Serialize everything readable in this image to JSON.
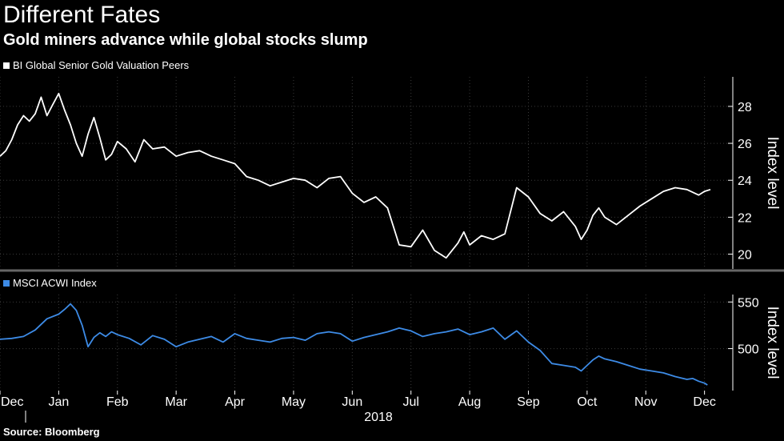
{
  "title": "Different Fates",
  "subtitle": "Gold miners advance while global stocks slump",
  "source": "Source: Bloomberg",
  "colors": {
    "background": "#000000",
    "gold_series": "#ffffff",
    "acwi_series": "#3d8be6",
    "grid": "#3a3a3a",
    "divider": "#666666"
  },
  "chart_data": [
    {
      "type": "line",
      "title": "BI Global Senior Gold Valuation Peers",
      "ylabel": "Index level",
      "ylim": [
        19.2,
        29.6
      ],
      "yticks": [
        20,
        22,
        24,
        26,
        28
      ],
      "x_range": [
        0,
        12.4
      ],
      "series": [
        {
          "name": "BI Global Senior Gold Valuation Peers",
          "color": "#ffffff",
          "x": [
            0.0,
            0.1,
            0.2,
            0.3,
            0.4,
            0.5,
            0.6,
            0.7,
            0.8,
            0.9,
            1.0,
            1.1,
            1.2,
            1.3,
            1.4,
            1.5,
            1.6,
            1.7,
            1.8,
            1.9,
            2.0,
            2.15,
            2.3,
            2.45,
            2.6,
            2.8,
            3.0,
            3.2,
            3.4,
            3.6,
            3.8,
            4.0,
            4.2,
            4.4,
            4.6,
            4.8,
            5.0,
            5.2,
            5.4,
            5.6,
            5.8,
            6.0,
            6.2,
            6.4,
            6.6,
            6.8,
            7.0,
            7.2,
            7.4,
            7.6,
            7.8,
            7.9,
            8.0,
            8.2,
            8.4,
            8.6,
            8.8,
            9.0,
            9.2,
            9.4,
            9.6,
            9.8,
            9.9,
            10.0,
            10.1,
            10.2,
            10.3,
            10.5,
            10.7,
            10.9,
            11.1,
            11.3,
            11.5,
            11.7,
            11.9,
            12.0,
            12.1
          ],
          "values": [
            25.3,
            25.6,
            26.2,
            27.0,
            27.5,
            27.2,
            27.6,
            28.5,
            27.5,
            28.1,
            28.7,
            27.8,
            27.0,
            26.0,
            25.3,
            26.5,
            27.4,
            26.3,
            25.1,
            25.4,
            26.1,
            25.7,
            25.0,
            26.2,
            25.7,
            25.8,
            25.3,
            25.5,
            25.6,
            25.3,
            25.1,
            24.9,
            24.2,
            24.0,
            23.7,
            23.9,
            24.1,
            24.0,
            23.6,
            24.1,
            24.2,
            23.3,
            22.8,
            23.1,
            22.5,
            20.5,
            20.4,
            21.3,
            20.2,
            19.8,
            20.6,
            21.2,
            20.5,
            21.0,
            20.8,
            21.1,
            23.6,
            23.1,
            22.2,
            21.8,
            22.3,
            21.5,
            20.8,
            21.3,
            22.1,
            22.5,
            22.0,
            21.6,
            22.1,
            22.6,
            23.0,
            23.4,
            23.6,
            23.5,
            23.2,
            23.4,
            23.5
          ]
        }
      ]
    },
    {
      "type": "line",
      "title": "MSCI ACWI Index",
      "ylabel": "Index level",
      "ylim": [
        455,
        558
      ],
      "yticks": [
        500,
        550
      ],
      "x_range": [
        0,
        12.4
      ],
      "xticks": [
        "Dec",
        "Jan",
        "Feb",
        "Mar",
        "Apr",
        "May",
        "Jun",
        "Jul",
        "Aug",
        "Sep",
        "Oct",
        "Nov",
        "Dec"
      ],
      "year_label": "2018",
      "series": [
        {
          "name": "MSCI ACWI Index",
          "color": "#3d8be6",
          "x": [
            0.0,
            0.2,
            0.4,
            0.6,
            0.8,
            1.0,
            1.1,
            1.2,
            1.3,
            1.4,
            1.5,
            1.6,
            1.7,
            1.8,
            1.9,
            2.0,
            2.2,
            2.4,
            2.6,
            2.8,
            3.0,
            3.2,
            3.4,
            3.6,
            3.8,
            4.0,
            4.2,
            4.4,
            4.6,
            4.8,
            5.0,
            5.2,
            5.4,
            5.6,
            5.8,
            6.0,
            6.2,
            6.4,
            6.6,
            6.8,
            7.0,
            7.2,
            7.4,
            7.6,
            7.8,
            8.0,
            8.2,
            8.4,
            8.6,
            8.8,
            9.0,
            9.2,
            9.4,
            9.6,
            9.8,
            9.9,
            10.0,
            10.1,
            10.2,
            10.3,
            10.5,
            10.7,
            10.9,
            11.1,
            11.3,
            11.5,
            11.7,
            11.8,
            11.9,
            12.0,
            12.05
          ],
          "values": [
            510,
            511,
            513,
            520,
            532,
            537,
            542,
            548,
            541,
            525,
            502,
            512,
            517,
            513,
            518,
            515,
            511,
            504,
            514,
            510,
            502,
            507,
            510,
            513,
            507,
            516,
            511,
            509,
            507,
            511,
            512,
            509,
            516,
            518,
            516,
            508,
            512,
            515,
            518,
            522,
            519,
            513,
            516,
            518,
            521,
            515,
            518,
            522,
            510,
            519,
            507,
            498,
            484,
            482,
            480,
            476,
            482,
            488,
            492,
            489,
            486,
            482,
            478,
            476,
            474,
            470,
            467,
            468,
            465,
            463,
            461
          ]
        }
      ]
    }
  ]
}
